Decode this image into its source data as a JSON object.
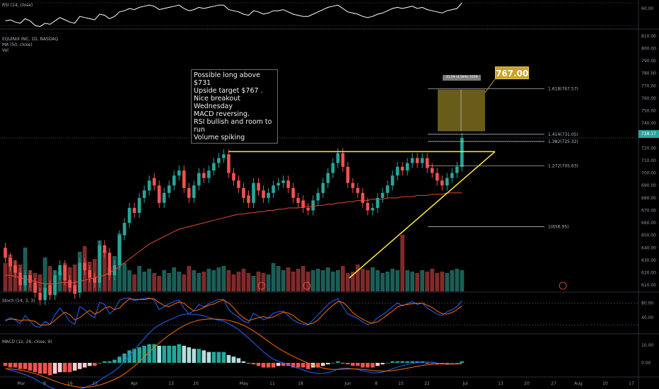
{
  "header": {
    "rsi_label": "RSI (14, close)",
    "symbol_label": "EQUINIX INC, 1D, NASDAQ",
    "ma_label": "MA (50, close)",
    "vol_label": "Vol",
    "stoch_label": "Stoch (14, 3, 3)",
    "macd_label": "MACD (12, 26, close, 9)"
  },
  "annotation": {
    "text": "Possible long above $731\nUpside target $767 .\nNice breakout Wednesday\nMACD reversing.\nRSI bullish and room to run\nVolume spiking",
    "target_label": "767.00",
    "range_label": "33.59 (4.58%) 3359",
    "current_price": "728.17"
  },
  "colors": {
    "up": "#26a69a",
    "down": "#ef5350",
    "up_vol": "#1b5e57",
    "down_vol": "#7f2a2a",
    "trendline": "#ffeb3b",
    "ma": "#e04a2f",
    "rsi": "#ffffff",
    "stoch_k": "#2962ff",
    "stoch_d": "#ff6d00",
    "target_box": "#8c7a22"
  },
  "chart_data": {
    "type": "candlestick",
    "symbol": "EQUINIX INC",
    "timeframe": "1D",
    "exchange": "NASDAQ",
    "x_tick_labels": [
      "Mar",
      "9",
      "16",
      "23",
      "Apr",
      "13",
      "20",
      "May",
      "11",
      "18",
      "Jun",
      "8",
      "15",
      "22",
      "Jul",
      "13",
      "20",
      "27",
      "Aug",
      "10",
      "17"
    ],
    "price_axis_labels": [
      "810.00",
      "800.00",
      "790.00",
      "780.00",
      "770.00",
      "760.00",
      "750.00",
      "740.00",
      "730.00",
      "720.00",
      "710.00",
      "700.00",
      "690.00",
      "680.00",
      "670.00",
      "660.00",
      "650.00",
      "640.00",
      "630.00",
      "620.00",
      "610.00"
    ],
    "ylim": [
      605,
      815
    ],
    "rsi_axis_labels": [
      "60.00"
    ],
    "stoch_axis_labels": [
      "80.00",
      "40.00"
    ],
    "macd_axis_labels": [
      "10.00",
      "0.00"
    ],
    "fib_levels": [
      {
        "label": "1.618(767.57)",
        "value": 767.57
      },
      {
        "label": "1.414(731.05)",
        "value": 731.05
      },
      {
        "label": "1.382(725.32)",
        "value": 725.32
      },
      {
        "label": "1.272(705.63)",
        "value": 705.63
      },
      {
        "label": "1(656.95)",
        "value": 656.95
      }
    ],
    "target_box": {
      "low": 733.5,
      "high": 767.0
    },
    "closes": [
      632,
      625,
      620,
      610,
      618,
      612,
      604,
      598,
      608,
      602,
      618,
      626,
      614,
      608,
      603,
      628,
      622,
      616,
      612,
      642,
      636,
      618,
      626,
      650,
      660,
      672,
      668,
      680,
      686,
      694,
      690,
      676,
      684,
      690,
      698,
      702,
      688,
      680,
      690,
      700,
      696,
      702,
      708,
      712,
      715,
      700,
      694,
      688,
      680,
      676,
      692,
      686,
      680,
      684,
      690,
      692,
      694,
      688,
      680,
      676,
      672,
      670,
      678,
      684,
      692,
      700,
      708,
      716,
      705,
      692,
      688,
      684,
      676,
      670,
      672,
      680,
      684,
      690,
      698,
      705,
      702,
      708,
      712,
      708,
      712,
      704,
      700,
      694,
      690,
      696,
      700,
      705,
      728.17
    ],
    "opens": [
      640,
      632,
      626,
      620,
      610,
      618,
      612,
      604,
      598,
      610,
      602,
      618,
      626,
      614,
      610,
      604,
      628,
      622,
      616,
      612,
      642,
      636,
      618,
      626,
      650,
      660,
      672,
      668,
      680,
      686,
      696,
      690,
      676,
      684,
      690,
      698,
      702,
      688,
      680,
      690,
      700,
      696,
      702,
      708,
      712,
      715,
      700,
      694,
      688,
      682,
      676,
      692,
      686,
      680,
      684,
      690,
      692,
      694,
      688,
      680,
      678,
      672,
      670,
      678,
      684,
      692,
      700,
      708,
      716,
      705,
      692,
      688,
      684,
      676,
      670,
      672,
      680,
      684,
      690,
      698,
      705,
      702,
      708,
      712,
      708,
      712,
      704,
      700,
      694,
      690,
      696,
      700,
      705
    ],
    "ma50": [
      618,
      618,
      617,
      616,
      615,
      614,
      613,
      612,
      611,
      611,
      611,
      612,
      612,
      612,
      612,
      613,
      614,
      615,
      616,
      617,
      618,
      620,
      622,
      625,
      628,
      631,
      634,
      637,
      640,
      643,
      645,
      647,
      649,
      651,
      653,
      655,
      656,
      657,
      658,
      659,
      660,
      661,
      662,
      663,
      664,
      665,
      666,
      667,
      667,
      668,
      668,
      669,
      669,
      670,
      670,
      671,
      671,
      672,
      672,
      672,
      673,
      673,
      673,
      674,
      674,
      675,
      675,
      676,
      676,
      677,
      677,
      678,
      678,
      678,
      679,
      679,
      679,
      680,
      680,
      680,
      681,
      681,
      681,
      682,
      682,
      682,
      683,
      683,
      683,
      684,
      684,
      684,
      684
    ],
    "volume": [
      40,
      52,
      44,
      38,
      62,
      30,
      26,
      24,
      48,
      36,
      30,
      28,
      40,
      34,
      38,
      56,
      64,
      42,
      46,
      72,
      58,
      34,
      50,
      82,
      40,
      30,
      24,
      36,
      28,
      32,
      26,
      22,
      30,
      26,
      34,
      28,
      24,
      36,
      30,
      26,
      28,
      32,
      30,
      34,
      36,
      30,
      24,
      28,
      32,
      26,
      22,
      28,
      26,
      24,
      40,
      36,
      30,
      34,
      28,
      32,
      36,
      28,
      30,
      32,
      30,
      34,
      28,
      30,
      36,
      26,
      28,
      38,
      32,
      30,
      34,
      30,
      26,
      28,
      32,
      30,
      80,
      30,
      28,
      26,
      30,
      28,
      32,
      26,
      28,
      26,
      30,
      32,
      30
    ],
    "rsi": [
      38,
      40,
      36,
      34,
      42,
      38,
      30,
      28,
      34,
      32,
      38,
      44,
      40,
      36,
      34,
      46,
      44,
      42,
      40,
      50,
      48,
      42,
      46,
      54,
      56,
      60,
      58,
      62,
      64,
      66,
      64,
      58,
      60,
      62,
      64,
      66,
      60,
      56,
      58,
      62,
      60,
      62,
      64,
      66,
      66,
      58,
      56,
      54,
      50,
      48,
      56,
      54,
      50,
      52,
      56,
      56,
      58,
      54,
      50,
      48,
      46,
      46,
      50,
      54,
      58,
      62,
      64,
      66,
      60,
      54,
      52,
      50,
      46,
      44,
      46,
      50,
      52,
      56,
      60,
      62,
      60,
      62,
      64,
      60,
      62,
      58,
      56,
      54,
      52,
      56,
      58,
      60,
      70
    ],
    "stoch_k": [
      30,
      40,
      34,
      24,
      46,
      30,
      16,
      14,
      30,
      22,
      48,
      66,
      50,
      30,
      22,
      70,
      62,
      48,
      40,
      82,
      76,
      50,
      62,
      88,
      92,
      94,
      86,
      90,
      92,
      94,
      88,
      62,
      70,
      78,
      84,
      88,
      66,
      50,
      60,
      76,
      70,
      78,
      84,
      90,
      90,
      62,
      50,
      42,
      30,
      26,
      52,
      44,
      34,
      40,
      52,
      56,
      58,
      46,
      34,
      26,
      22,
      20,
      34,
      48,
      62,
      76,
      86,
      92,
      70,
      50,
      44,
      38,
      28,
      22,
      26,
      40,
      48,
      58,
      70,
      80,
      72,
      78,
      84,
      76,
      80,
      66,
      58,
      50,
      46,
      56,
      62,
      70,
      86
    ],
    "stoch_d": [
      34,
      36,
      36,
      32,
      34,
      33,
      30,
      20,
      20,
      22,
      33,
      45,
      55,
      48,
      34,
      40,
      51,
      60,
      50,
      56,
      66,
      70,
      62,
      66,
      80,
      91,
      90,
      90,
      89,
      92,
      91,
      81,
      73,
      70,
      77,
      83,
      79,
      68,
      58,
      62,
      68,
      74,
      77,
      84,
      88,
      80,
      67,
      51,
      40,
      32,
      36,
      40,
      43,
      39,
      42,
      49,
      55,
      53,
      46,
      35,
      27,
      22,
      25,
      34,
      48,
      62,
      74,
      84,
      82,
      70,
      54,
      44,
      36,
      29,
      25,
      29,
      38,
      48,
      58,
      69,
      74,
      76,
      78,
      79,
      80,
      74,
      68,
      58,
      51,
      50,
      54,
      62,
      72
    ],
    "macd_hist": [
      -2,
      -3,
      -3,
      -4,
      -4,
      -5,
      -6,
      -7,
      -7,
      -8,
      -7,
      -6,
      -6,
      -6,
      -5,
      -4,
      -3,
      -2,
      -2,
      0,
      1,
      1,
      2,
      4,
      6,
      8,
      9,
      10,
      11,
      12,
      12,
      11,
      11,
      11,
      11,
      12,
      11,
      10,
      9,
      9,
      8,
      7,
      7,
      7,
      7,
      5,
      4,
      3,
      1,
      0,
      -1,
      -2,
      -3,
      -3,
      -3,
      -2,
      -2,
      -2,
      -3,
      -3,
      -3,
      -4,
      -3,
      -3,
      -2,
      -1,
      0,
      1,
      0,
      -1,
      -2,
      -2,
      -3,
      -3,
      -3,
      -2,
      -1,
      0,
      1,
      1,
      1,
      1,
      1,
      1,
      1,
      0,
      0,
      -1,
      -1,
      -1,
      0,
      0,
      1
    ]
  }
}
